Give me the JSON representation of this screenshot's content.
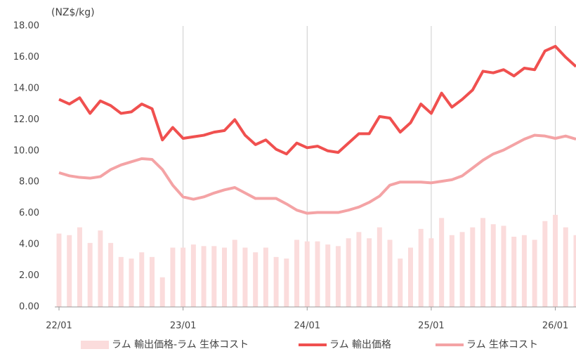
{
  "chart_data": {
    "type": "combo",
    "y_label": "(NZ$/kg)",
    "categories": [
      "22/01",
      null,
      null,
      null,
      null,
      null,
      null,
      null,
      null,
      null,
      null,
      null,
      "23/01",
      null,
      null,
      null,
      null,
      null,
      null,
      null,
      null,
      null,
      null,
      null,
      "24/01",
      null,
      null,
      null,
      null,
      null,
      null,
      null,
      null,
      null,
      null,
      null,
      "25/01",
      null,
      null,
      null,
      null,
      null,
      null,
      null,
      null,
      null,
      null,
      null,
      "26/01",
      null,
      null
    ],
    "series": [
      {
        "name": "ラム 輸出価格-ラム 生体コスト",
        "type": "bar",
        "color": "#fbdcdc",
        "values": [
          4.7,
          4.6,
          5.1,
          4.1,
          4.9,
          4.1,
          3.2,
          3.1,
          3.5,
          3.2,
          1.9,
          3.8,
          3.8,
          4.0,
          3.9,
          3.9,
          3.8,
          4.3,
          3.8,
          3.5,
          3.8,
          3.2,
          3.1,
          4.3,
          4.2,
          4.2,
          4.0,
          3.9,
          4.4,
          4.8,
          4.4,
          5.1,
          4.3,
          3.1,
          3.8,
          5.0,
          4.4,
          5.7,
          4.6,
          4.8,
          5.1,
          5.7,
          5.3,
          5.2,
          4.5,
          4.6,
          4.3,
          5.5,
          5.9,
          5.1,
          4.6
        ]
      },
      {
        "name": "ラム 輸出価格",
        "type": "line",
        "color": "#f0504f",
        "values": [
          13.3,
          13.0,
          13.4,
          12.4,
          13.2,
          12.9,
          12.4,
          12.5,
          13.0,
          12.7,
          10.7,
          11.5,
          10.8,
          10.9,
          11.0,
          11.2,
          11.3,
          12.0,
          11.0,
          10.4,
          10.7,
          10.1,
          9.8,
          10.5,
          10.2,
          10.3,
          10.0,
          9.9,
          10.5,
          11.1,
          11.1,
          12.2,
          12.1,
          11.2,
          11.8,
          13.0,
          12.4,
          13.7,
          12.8,
          13.3,
          13.9,
          15.1,
          15.0,
          15.2,
          14.8,
          15.3,
          15.2,
          16.4,
          16.7,
          16.0,
          15.4
        ]
      },
      {
        "name": "ラム 生体コスト",
        "type": "line",
        "color": "#f4a3a5",
        "values": [
          8.6,
          8.4,
          8.3,
          8.25,
          8.35,
          8.8,
          9.1,
          9.3,
          9.5,
          9.45,
          8.8,
          7.8,
          7.05,
          6.9,
          7.05,
          7.3,
          7.5,
          7.65,
          7.3,
          6.95,
          6.95,
          6.95,
          6.6,
          6.2,
          6.0,
          6.05,
          6.05,
          6.05,
          6.2,
          6.4,
          6.7,
          7.1,
          7.8,
          8.0,
          8.0,
          8.0,
          7.95,
          8.05,
          8.15,
          8.4,
          8.9,
          9.4,
          9.8,
          10.05,
          10.4,
          10.75,
          11.0,
          10.95,
          10.8,
          10.95,
          10.75
        ]
      }
    ],
    "ylim": [
      0,
      18
    ],
    "yticks": [
      {
        "value": 0,
        "label": "0.00"
      },
      {
        "value": 2,
        "label": "2.00"
      },
      {
        "value": 4,
        "label": "4.00"
      },
      {
        "value": 6,
        "label": "6.00"
      },
      {
        "value": 8,
        "label": "8.00"
      },
      {
        "value": 10,
        "label": "10.00"
      },
      {
        "value": 12,
        "label": "12.00"
      },
      {
        "value": 14,
        "label": "14.00"
      },
      {
        "value": 16,
        "label": "16.00"
      },
      {
        "value": 18,
        "label": "18.00"
      }
    ],
    "x_grid": true,
    "legend": "bottom"
  }
}
